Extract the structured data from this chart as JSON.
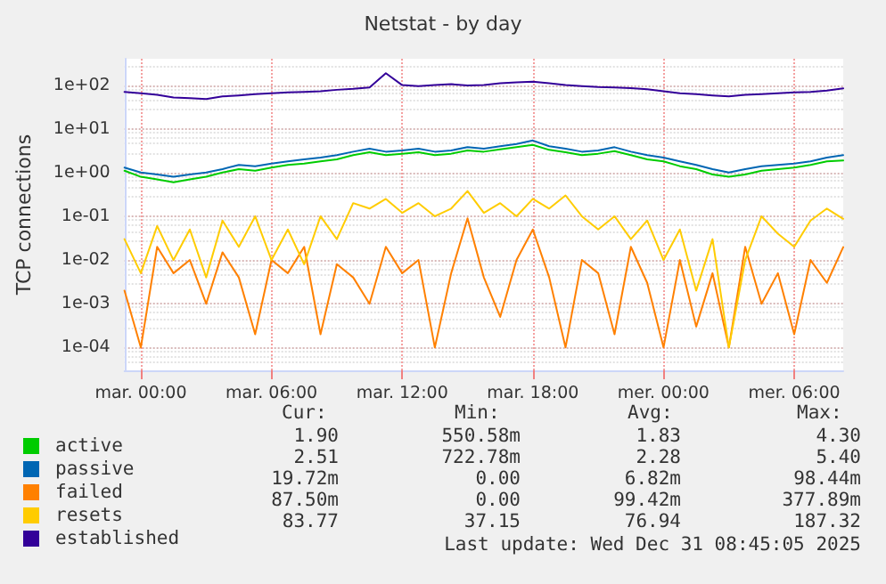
{
  "chart_data": {
    "type": "line",
    "title": "Netstat - by day",
    "ylabel": "TCP connections",
    "categories": [
      null,
      "mar. 00:00",
      null,
      null,
      null,
      null,
      null,
      null,
      null,
      "mar. 06:00",
      null,
      null,
      null,
      null,
      null,
      null,
      null,
      "mar. 12:00",
      null,
      null,
      null,
      null,
      null,
      null,
      null,
      "mar. 18:00",
      null,
      null,
      null,
      null,
      null,
      null,
      null,
      "mer. 00:00",
      null,
      null,
      null,
      null,
      null,
      null,
      null,
      "mer. 06:00",
      null,
      null,
      null
    ],
    "series": [
      {
        "name": "active",
        "color": "#00cc00",
        "values": [
          1.1,
          0.8,
          0.7,
          0.6,
          0.7,
          0.8,
          1.0,
          1.2,
          1.1,
          1.3,
          1.5,
          1.6,
          1.8,
          2.0,
          2.5,
          2.9,
          2.5,
          2.7,
          2.9,
          2.5,
          2.7,
          3.2,
          3.0,
          3.4,
          3.8,
          4.3,
          3.3,
          2.9,
          2.5,
          2.7,
          3.1,
          2.5,
          2.0,
          1.8,
          1.4,
          1.2,
          0.9,
          0.8,
          0.9,
          1.1,
          1.2,
          1.3,
          1.5,
          1.8,
          1.9
        ]
      },
      {
        "name": "passive",
        "color": "#0066b3",
        "values": [
          1.3,
          1.0,
          0.9,
          0.8,
          0.9,
          1.0,
          1.2,
          1.5,
          1.4,
          1.6,
          1.8,
          2.0,
          2.2,
          2.5,
          3.0,
          3.5,
          3.0,
          3.2,
          3.5,
          3.0,
          3.2,
          3.8,
          3.5,
          4.0,
          4.5,
          5.4,
          4.0,
          3.5,
          3.0,
          3.2,
          3.8,
          3.0,
          2.5,
          2.2,
          1.8,
          1.5,
          1.2,
          1.0,
          1.2,
          1.4,
          1.5,
          1.6,
          1.8,
          2.2,
          2.5
        ]
      },
      {
        "name": "failed",
        "color": "#ff8000",
        "values": [
          0.002,
          0.0001,
          0.02,
          0.005,
          0.01,
          0.001,
          0.015,
          0.004,
          0.0002,
          0.01,
          0.005,
          0.02,
          0.0002,
          0.008,
          0.004,
          0.001,
          0.02,
          0.005,
          0.01,
          0.0001,
          0.005,
          0.09,
          0.004,
          0.0005,
          0.01,
          0.05,
          0.004,
          0.0001,
          0.01,
          0.005,
          0.0002,
          0.02,
          0.003,
          0.0001,
          0.01,
          0.0003,
          0.005,
          0.0001,
          0.02,
          0.001,
          0.005,
          0.0002,
          0.01,
          0.003,
          0.0197
        ]
      },
      {
        "name": "resets",
        "color": "#ffcc00",
        "values": [
          0.03,
          0.005,
          0.06,
          0.01,
          0.05,
          0.004,
          0.08,
          0.02,
          0.1,
          0.01,
          0.05,
          0.008,
          0.1,
          0.03,
          0.2,
          0.15,
          0.25,
          0.12,
          0.2,
          0.1,
          0.15,
          0.378,
          0.12,
          0.2,
          0.1,
          0.25,
          0.15,
          0.3,
          0.1,
          0.05,
          0.1,
          0.03,
          0.08,
          0.01,
          0.05,
          0.002,
          0.03,
          0.0001,
          0.01,
          0.1,
          0.04,
          0.02,
          0.08,
          0.15,
          0.0875
        ]
      },
      {
        "name": "established",
        "color": "#330099",
        "values": [
          70,
          65,
          60,
          52,
          50,
          48,
          55,
          58,
          62,
          65,
          68,
          70,
          72,
          78,
          82,
          88,
          187,
          100,
          95,
          100,
          105,
          98,
          100,
          110,
          115,
          120,
          110,
          100,
          95,
          90,
          88,
          85,
          80,
          72,
          65,
          62,
          58,
          55,
          60,
          62,
          65,
          68,
          70,
          75,
          84
        ]
      }
    ],
    "ylim": [
      3e-05,
      400
    ],
    "yticks": [
      {
        "value": 0.0001,
        "label": "1e-04"
      },
      {
        "value": 0.001,
        "label": "1e-03"
      },
      {
        "value": 0.01,
        "label": "1e-02"
      },
      {
        "value": 0.1,
        "label": "1e-01"
      },
      {
        "value": 1,
        "label": "1e+00"
      },
      {
        "value": 10,
        "label": "1e+01"
      },
      {
        "value": 100,
        "label": "1e+02"
      }
    ],
    "log": "y",
    "grid": true,
    "legend": "bottom left",
    "marker": "none",
    "line_style": "solid",
    "annotations": [
      "Cur:",
      "Min:",
      "Avg:",
      "Max:",
      "1.90",
      "550.58m",
      "1.83",
      "4.30",
      "2.51",
      "722.78m",
      "2.28",
      "5.40",
      "19.72m",
      "0.00",
      "6.82m",
      "98.44m",
      "87.50m",
      "0.00",
      "99.42m",
      "377.89m",
      "83.77",
      "37.15",
      "76.94",
      "187.32",
      "Last update: Wed Dec 31 08:45:05 2025"
    ]
  }
}
